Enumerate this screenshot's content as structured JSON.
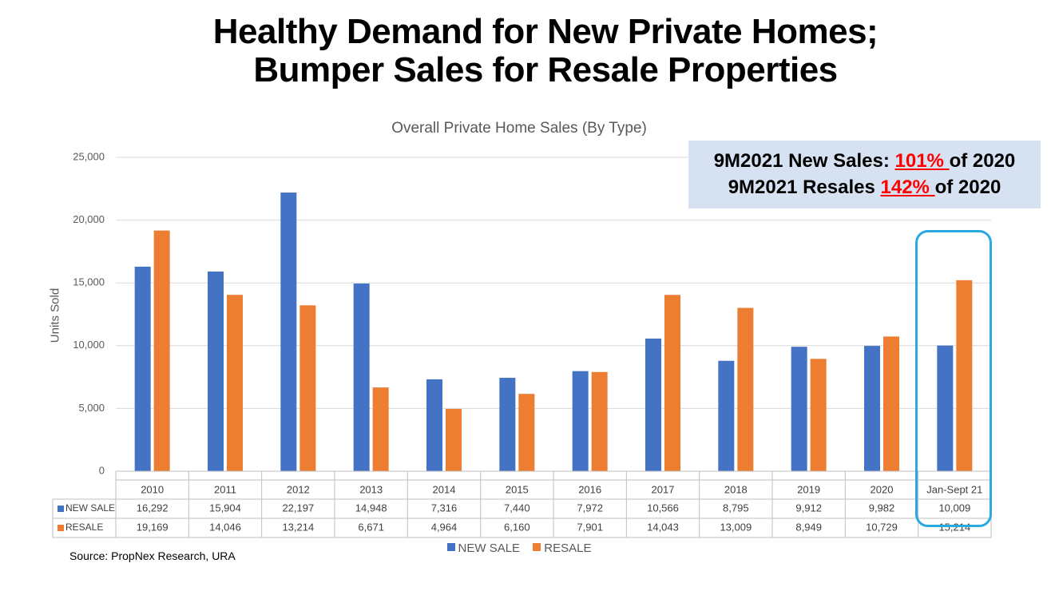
{
  "headline": {
    "line1": "Healthy Demand for New Private Homes;",
    "line2": "Bumper Sales for Resale Properties"
  },
  "callout": {
    "line1_prefix": "9M2021 New Sales: ",
    "line1_pct": "101% ",
    "line1_suffix": "of 2020",
    "line2_prefix": "9M2021 Resales ",
    "line2_pct": "142% ",
    "line2_suffix": "of 2020",
    "highlight_color": "#ff0000",
    "background": "#d6e2f2"
  },
  "source": "Source: PropNex Research, URA",
  "highlight_box_color": "#29a9e0",
  "chart_data": {
    "type": "bar",
    "title": "Overall Private Home Sales (By Type)",
    "xlabel": "",
    "ylabel": "Units Sold",
    "ylim": [
      0,
      25000
    ],
    "yticks": [
      "0",
      "5,000",
      "10,000",
      "15,000",
      "20,000",
      "25,000"
    ],
    "ytick_values": [
      0,
      5000,
      10000,
      15000,
      20000,
      25000
    ],
    "grid": true,
    "legend": "bottom",
    "categories": [
      "2010",
      "2011",
      "2012",
      "2013",
      "2014",
      "2015",
      "2016",
      "2017",
      "2018",
      "2019",
      "2020",
      "Jan-Sept 21"
    ],
    "series": [
      {
        "name": "NEW SALE",
        "color": "#4472c4",
        "values": [
          16292,
          15904,
          22197,
          14948,
          7316,
          7440,
          7972,
          10566,
          8795,
          9912,
          9982,
          10009
        ],
        "labels": [
          "16,292",
          "15,904",
          "22,197",
          "14,948",
          "7,316",
          "7,440",
          "7,972",
          "10,566",
          "8,795",
          "9,912",
          "9,982",
          "10,009"
        ]
      },
      {
        "name": "RESALE",
        "color": "#ed7d31",
        "values": [
          19169,
          14046,
          13214,
          6671,
          4964,
          6160,
          7901,
          14043,
          13009,
          8949,
          10729,
          15214
        ],
        "labels": [
          "19,169",
          "14,046",
          "13,214",
          "6,671",
          "4,964",
          "6,160",
          "7,901",
          "14,043",
          "13,009",
          "8,949",
          "10,729",
          "15,214"
        ]
      }
    ]
  }
}
